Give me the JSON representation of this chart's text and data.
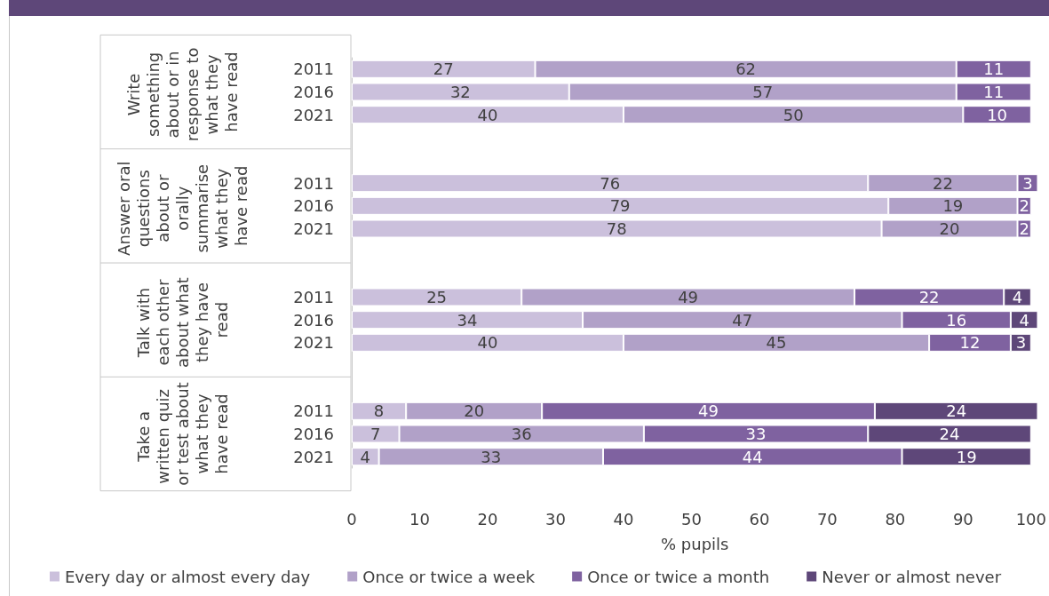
{
  "chart_data": {
    "type": "bar",
    "orientation": "horizontal",
    "stacked": true,
    "xlabel": "% pupils",
    "categories": [
      "2011",
      "2016",
      "2021",
      null,
      null,
      "2011",
      "2016",
      "2021",
      null,
      null,
      "2011",
      "2016",
      "2021",
      null,
      null,
      "2011",
      "2016",
      "2021"
    ],
    "annotations": [
      "Write something about or in response to what they have read",
      "Answer oral questions about or orally summarise what they have read",
      "Talk with each other about what they have read",
      "Take a written quiz or test about what they have read"
    ],
    "series": [
      {
        "name": "Every day or almost every day",
        "color": "#cbc0dc",
        "values": [
          27,
          32,
          40,
          null,
          null,
          76,
          79,
          78,
          null,
          null,
          25,
          34,
          40,
          null,
          null,
          8,
          7,
          4
        ]
      },
      {
        "name": "Once or twice a week",
        "color": "#b1a1c8",
        "values": [
          62,
          57,
          50,
          null,
          null,
          22,
          19,
          20,
          null,
          null,
          49,
          47,
          45,
          null,
          null,
          20,
          36,
          33
        ]
      },
      {
        "name": "Once or twice a month",
        "color": "#7f62a0",
        "values": [
          11,
          11,
          10,
          null,
          null,
          3,
          2,
          2,
          null,
          null,
          22,
          16,
          12,
          null,
          null,
          49,
          33,
          44
        ]
      },
      {
        "name": "Never or almost never",
        "color": "#5e4779",
        "values": [
          null,
          null,
          null,
          null,
          null,
          null,
          null,
          null,
          null,
          null,
          4,
          4,
          3,
          null,
          null,
          24,
          24,
          19
        ]
      }
    ],
    "xlim": [
      0,
      101
    ],
    "xticks": [
      0,
      10,
      20,
      30,
      40,
      50,
      60,
      70,
      80,
      90,
      100
    ],
    "grid": false,
    "legend": "bottom",
    "data_labels": true
  }
}
